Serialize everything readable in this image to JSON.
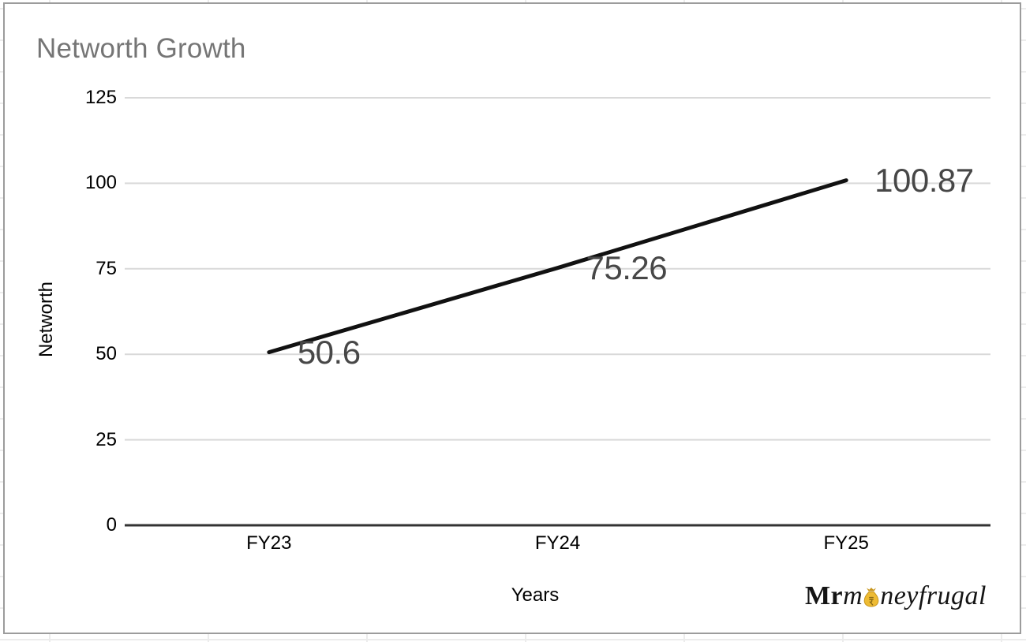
{
  "page": {
    "background_grid_color": "#ececec",
    "card_border_color": "#9c9c9c",
    "card_background": "#ffffff"
  },
  "chart_data": {
    "type": "line",
    "title": "Networth Growth",
    "xlabel": "Years",
    "ylabel": "Networth",
    "categories": [
      "FY23",
      "FY24",
      "FY25"
    ],
    "series": [
      {
        "name": "Networth",
        "values": [
          50.6,
          75.26,
          100.87
        ]
      }
    ],
    "value_labels": [
      "50.6",
      "75.26",
      "100.87"
    ],
    "yticks": [
      0,
      25,
      50,
      75,
      100,
      125
    ],
    "ylim": [
      0,
      125
    ],
    "grid": true,
    "legend": "none",
    "line_color": "#111111",
    "grid_color": "#d9d9d9",
    "axis_color": "#333333",
    "tick_color": "#000000",
    "label_color": "#474747",
    "title_color": "#757575"
  },
  "branding": {
    "prefix_bold": "Mr",
    "italic_pre": "m",
    "italic_post": "neyfrugal",
    "bag_icon_color": "#eebb33",
    "bag_icon_outline": "#c8961e",
    "bag_symbol": "rupee"
  }
}
